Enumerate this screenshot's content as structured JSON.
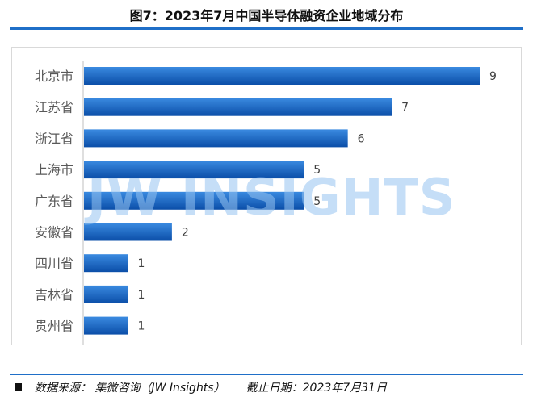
{
  "title": "图7：2023年7月中国半导体融资企业地域分布",
  "watermark": "JW INSIGHTS",
  "footer": {
    "source": "数据来源： 集微咨询（JW Insights）",
    "date": "截止日期：2023年7月31日"
  },
  "colors": {
    "bar_top": "#3a8ae0",
    "bar_bottom": "#0b4ea8",
    "rule": "#1f6fc8"
  },
  "chart_data": {
    "type": "bar",
    "orientation": "horizontal",
    "categories": [
      "北京市",
      "江苏省",
      "浙江省",
      "上海市",
      "广东省",
      "安徽省",
      "四川省",
      "吉林省",
      "贵州省"
    ],
    "values": [
      9,
      7,
      6,
      5,
      5,
      2,
      1,
      1,
      1
    ],
    "xlim": [
      0,
      9
    ],
    "grid": false,
    "legend": "none",
    "data_labels": true
  }
}
